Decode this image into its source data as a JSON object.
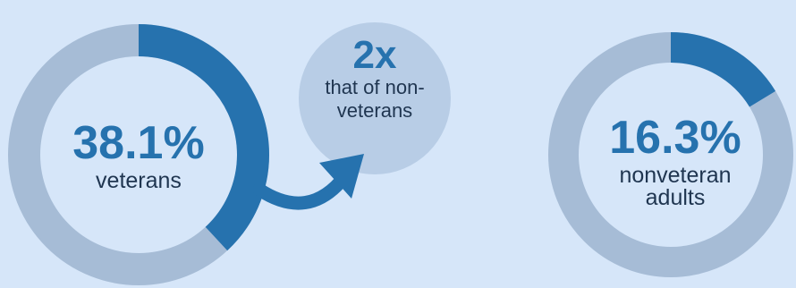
{
  "chart_data": [
    {
      "type": "pie",
      "categories": [
        "veterans",
        "other"
      ],
      "values": [
        38.1,
        61.9
      ],
      "center_value": "38.1%",
      "center_label": "veterans"
    },
    {
      "type": "pie",
      "categories": [
        "nonveteran adults",
        "other"
      ],
      "values": [
        16.3,
        83.7
      ],
      "center_value": "16.3%",
      "center_label_lines": [
        "nonveteran",
        "adults"
      ]
    }
  ],
  "callout": {
    "value": "2x",
    "lines": [
      "that of non-",
      "veterans"
    ]
  },
  "colors": {
    "background": "#d6e6f9",
    "highlight": "#2672ae",
    "track": "#a6bcd6",
    "callout_circle": "#b8cde6",
    "label_text": "#1f3550"
  }
}
